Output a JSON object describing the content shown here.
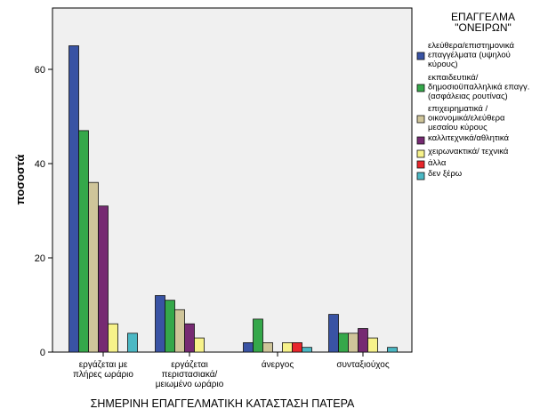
{
  "chart_data": {
    "type": "bar",
    "title": "",
    "xlabel": "ΣΗΜΕΡΙΝΗ ΕΠΑΓΓΕΛΜΑΤΙΚΗ ΚΑΤΑΣΤΑΣΗ ΠΑΤΕΡΑ",
    "ylabel": "ποσοστά",
    "ylim": [
      0,
      75
    ],
    "yticks": [
      "0",
      "20",
      "40",
      "60"
    ],
    "ytick_values": [
      0,
      20,
      40,
      60
    ],
    "grid": false,
    "legend_position": "top-right",
    "legend_title": [
      "ΕΠΑΓΓΕΛΜΑ",
      "\"ΟΝΕΙΡΩΝ\""
    ],
    "categories": [
      [
        "εργάζεται με",
        "πλήρες ωράριο"
      ],
      [
        "εργάζεται",
        "περιστασιακά/",
        "μειωμένο ωράριο"
      ],
      [
        "άνεργος"
      ],
      [
        "συνταξιούχος"
      ]
    ],
    "series": [
      {
        "name": [
          "ελεύθερα/επιστημονικά",
          "επαγγέλματα (υψηλού",
          "κύρους)"
        ],
        "color": "#3953a4",
        "values": [
          65,
          12,
          2,
          8
        ]
      },
      {
        "name": [
          "εκπαιδευτικά/",
          "δημοσιοϋπαλληλικά επαγγ.",
          "(ασφάλειας ρουτίνας)"
        ],
        "color": "#35a84a",
        "values": [
          47,
          11,
          7,
          4
        ]
      },
      {
        "name": [
          "επιχειρηματικά /",
          "οικονομικά/ελεύθερα",
          "μεσαίου κύρους"
        ],
        "color": "#cfc59a",
        "values": [
          36,
          9,
          2,
          4
        ]
      },
      {
        "name": [
          "καλλιτεχνικά/αθλητικά"
        ],
        "color": "#762a72",
        "values": [
          31,
          6,
          0,
          5
        ]
      },
      {
        "name": [
          "χειρωνακτικά/ τεχνικά"
        ],
        "color": "#f7f28a",
        "values": [
          6,
          3,
          2,
          3
        ]
      },
      {
        "name": [
          "άλλα"
        ],
        "color": "#e8262b",
        "values": [
          0,
          0,
          2,
          0
        ]
      },
      {
        "name": [
          "δεν ξέρω"
        ],
        "color": "#4bb8c4",
        "values": [
          4,
          0,
          1,
          1
        ]
      }
    ]
  },
  "colors": {
    "plot_background": "#f0f0f0",
    "bar_outline": "#111111"
  }
}
